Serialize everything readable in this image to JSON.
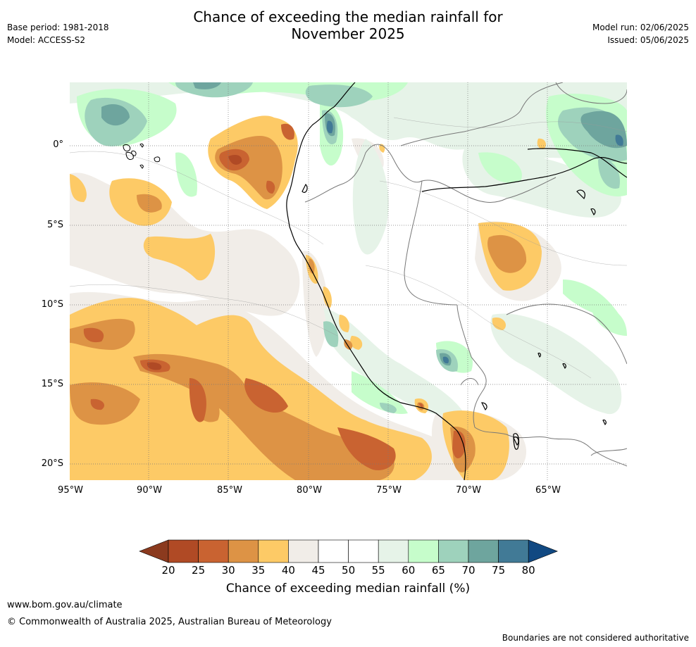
{
  "header": {
    "title_line1": "Chance of exceeding the median rainfall for",
    "title_line2": "November 2025",
    "base_period": "Base period: 1981-2018",
    "model": "Model: ACCESS-S2",
    "model_run": "Model run: 02/06/2025",
    "issued": "Issued: 05/06/2025"
  },
  "map": {
    "lat_labels": [
      "0°",
      "5°S",
      "10°S",
      "15°S",
      "20°S"
    ],
    "lon_labels": [
      "95°W",
      "90°W",
      "85°W",
      "80°W",
      "75°W",
      "70°W",
      "65°W"
    ]
  },
  "colorbar": {
    "ticks": [
      "20",
      "25",
      "30",
      "35",
      "40",
      "45",
      "50",
      "55",
      "60",
      "65",
      "70",
      "75",
      "80"
    ],
    "label": "Chance of exceeding median rainfall (%)",
    "colors": [
      "#8b3a1e",
      "#b04a25",
      "#c96331",
      "#dd9345",
      "#fdca66",
      "#f1ede8",
      "#ffffff",
      "#ffffff",
      "#e6f3e8",
      "#c6fdcb",
      "#9ed2bc",
      "#6ea59e",
      "#417a96",
      "#114982"
    ]
  },
  "footer": {
    "url": "www.bom.gov.au/climate",
    "copyright": "© Commonwealth of Australia 2025, Australian Bureau of Meteorology",
    "disclaimer": "Boundaries are not considered authoritative"
  }
}
